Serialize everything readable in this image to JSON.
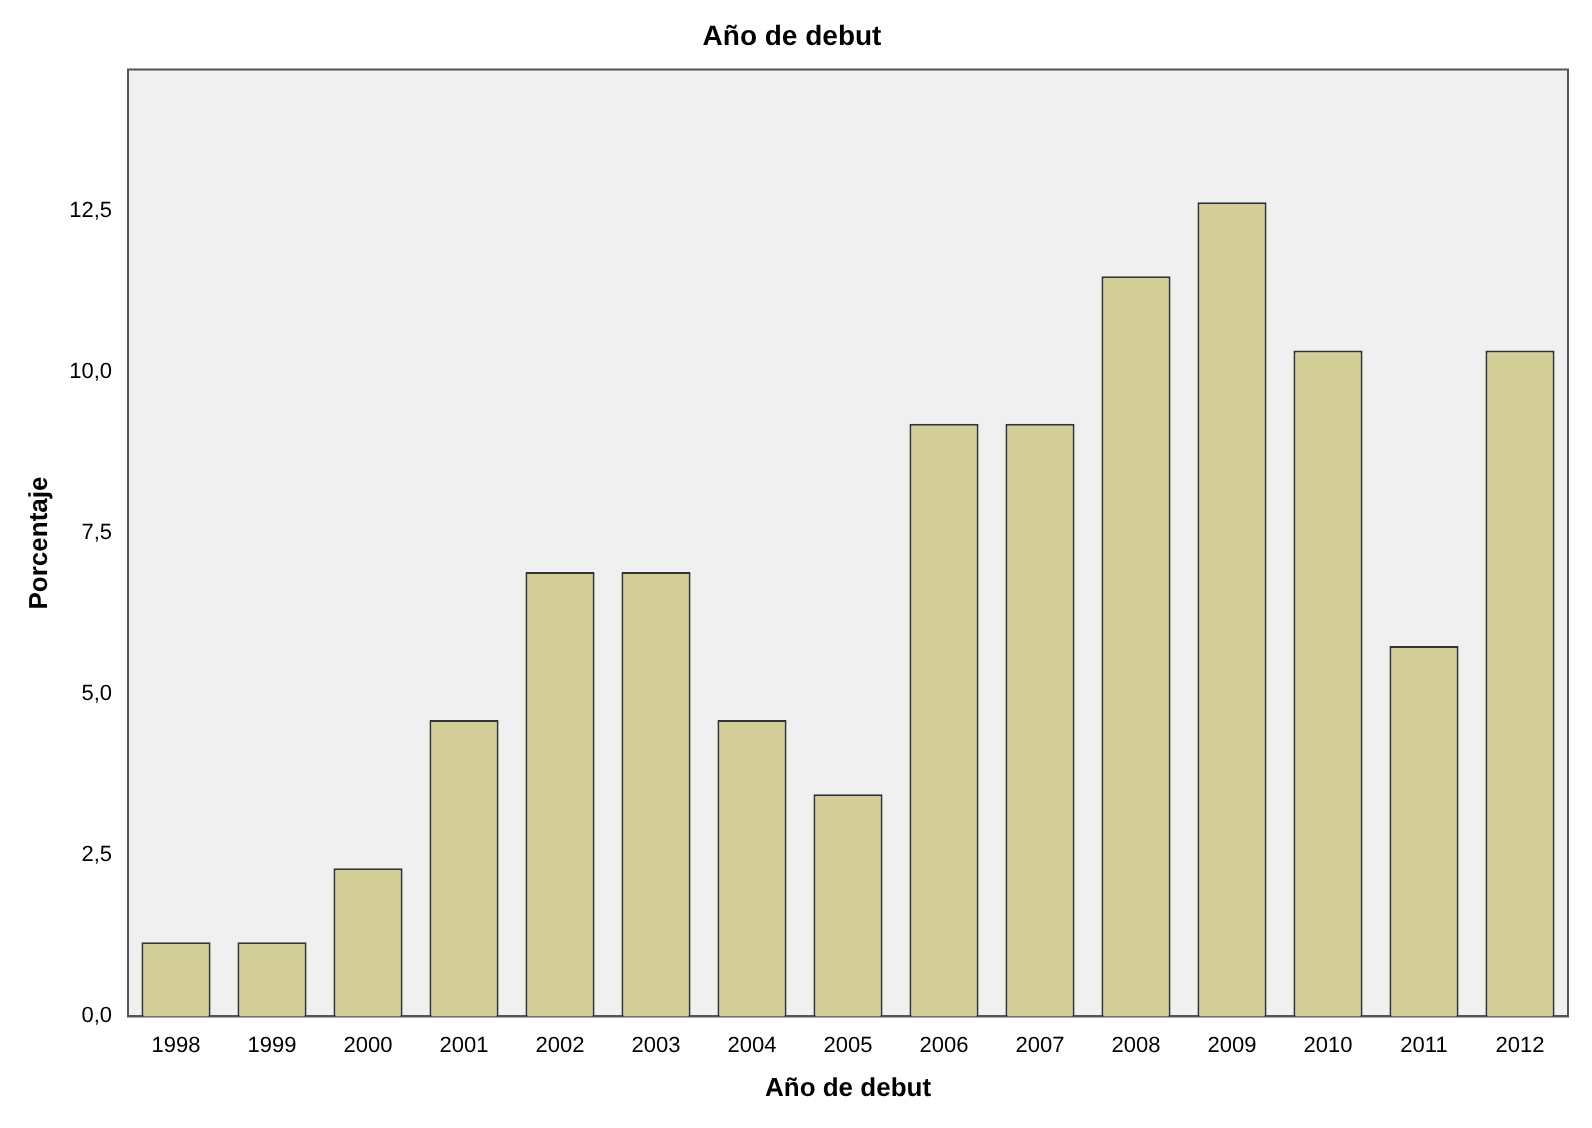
{
  "chart_data": {
    "type": "bar",
    "title": "Año de debut",
    "xlabel": "Año de debut",
    "ylabel": "Porcentaje",
    "categories": [
      "1998",
      "1999",
      "2000",
      "2001",
      "2002",
      "2003",
      "2004",
      "2005",
      "2006",
      "2007",
      "2008",
      "2009",
      "2010",
      "2011",
      "2012"
    ],
    "values": [
      1.15,
      1.15,
      2.3,
      4.6,
      6.9,
      6.9,
      4.6,
      3.45,
      9.2,
      9.2,
      11.49,
      12.64,
      10.34,
      5.75,
      10.34
    ],
    "color": "#d3ce97",
    "ylim": [
      0,
      14.7
    ],
    "yticks": [
      {
        "value": 0,
        "label": "0,0"
      },
      {
        "value": 2.5,
        "label": "2,5"
      },
      {
        "value": 5,
        "label": "5,0"
      },
      {
        "value": 7.5,
        "label": "7,5"
      },
      {
        "value": 10,
        "label": "10,0"
      },
      {
        "value": 12.5,
        "label": "12,5"
      }
    ],
    "grid": false,
    "legend": false
  }
}
